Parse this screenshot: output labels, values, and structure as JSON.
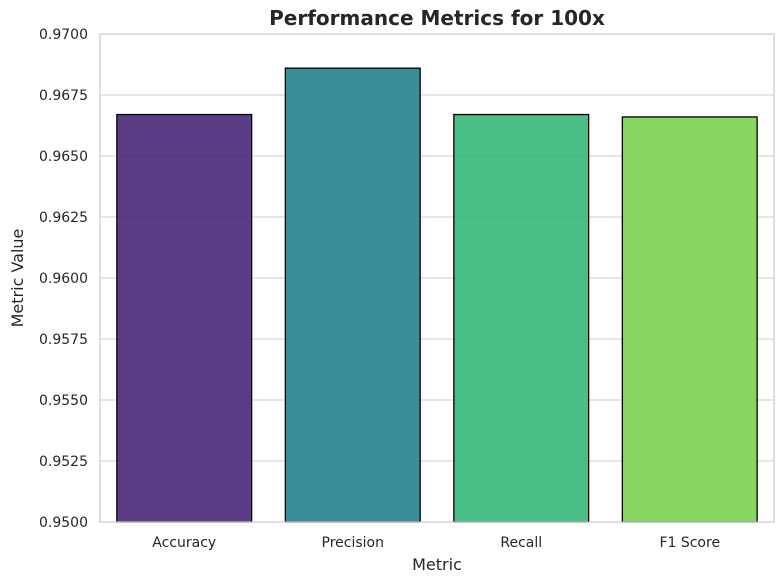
{
  "chart_data": {
    "type": "bar",
    "title": "Performance Metrics for 100x",
    "xlabel": "Metric",
    "ylabel": "Metric Value",
    "categories": [
      "Accuracy",
      "Precision",
      "Recall",
      "F1 Score"
    ],
    "values": [
      0.9667,
      0.9686,
      0.9667,
      0.9666
    ],
    "ylim": [
      0.95,
      0.97
    ],
    "yticks": [
      0.95,
      0.9525,
      0.955,
      0.9575,
      0.96,
      0.9625,
      0.965,
      0.9675,
      0.97
    ],
    "ytick_labels": [
      "0.9500",
      "0.9525",
      "0.9550",
      "0.9575",
      "0.9600",
      "0.9625",
      "0.9650",
      "0.9675",
      "0.9700"
    ],
    "grid": "horizontal",
    "colors": [
      "#482878",
      "#26828e",
      "#35b779",
      "#7ad151"
    ],
    "bar_opacity": 0.9,
    "edge_color": "#000000",
    "frame_color": "#cccccc",
    "grid_color": "#cccccc"
  }
}
